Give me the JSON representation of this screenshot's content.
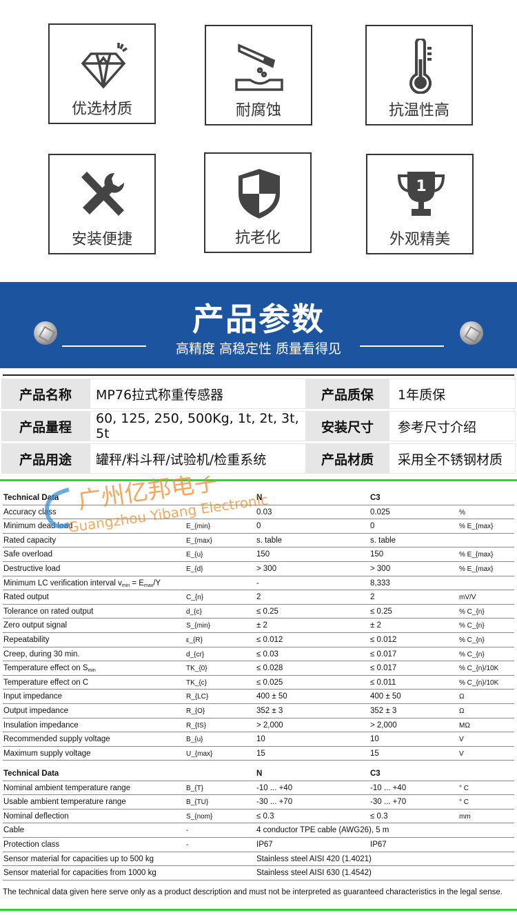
{
  "features": [
    {
      "label": "优选材质",
      "icon": "diamond-icon"
    },
    {
      "label": "耐腐蚀",
      "icon": "corrosion-icon"
    },
    {
      "label": "抗温性高",
      "icon": "thermometer-icon"
    },
    {
      "label": "安装便捷",
      "icon": "tools-icon"
    },
    {
      "label": "抗老化",
      "icon": "shield-icon"
    },
    {
      "label": "外观精美",
      "icon": "trophy-icon"
    }
  ],
  "banner": {
    "title": "产品参数",
    "subtitle": "高精度 高稳定性 质量看得见"
  },
  "params": [
    {
      "k1": "产品名称",
      "v1": "MP76拉式称重传感器",
      "k2": "产品质保",
      "v2": "1年质保"
    },
    {
      "k1": "产品量程",
      "v1": "60, 125, 250, 500Kg, 1t, 2t, 3t, 5t",
      "k2": "安装尺寸",
      "v2": "参考尺寸介绍"
    },
    {
      "k1": "产品用途",
      "v1": "罐秤/料斗秤/试验机/检重系统",
      "k2": "产品材质",
      "v2": "采用全不锈钢材质"
    }
  ],
  "watermark": {
    "cn": "广州亿邦电子",
    "en": "Guangzhou Yibang Electronic"
  },
  "table1": {
    "header": [
      "Technical Data",
      "",
      "N",
      "C3",
      ""
    ],
    "rows": [
      [
        "Accuracy class",
        "",
        "0.03",
        "0.025",
        "%"
      ],
      [
        "Minimum dead load",
        "E_{min}",
        "0",
        "0",
        "% E_{max}"
      ],
      [
        "Rated capacity",
        "E_{max}",
        "s. table",
        "s. table",
        ""
      ],
      [
        "Safe overload",
        "E_{u}",
        "150",
        "150",
        "% E_{max}"
      ],
      [
        "Destructive load",
        "E_{d}",
        "> 300",
        "> 300",
        "% E_{max}"
      ],
      [
        "Minimum LC verification interval v_{min} = E_{max}/Y",
        "",
        "-",
        "8,333",
        ""
      ],
      [
        "Rated output",
        "C_{n}",
        "2",
        "2",
        "mV/V"
      ],
      [
        "Tolerance on rated output",
        "d_{c}",
        "≤ 0.25",
        "≤ 0.25",
        "% C_{n}"
      ],
      [
        "Zero output signal",
        "S_{min}",
        "± 2",
        "± 2",
        "% C_{n}"
      ],
      [
        "Repeatability",
        "ε_{R}",
        "≤ 0.012",
        "≤ 0.012",
        "% C_{n}"
      ],
      [
        "Creep, during 30 min.",
        "d_{cr}",
        "≤ 0.03",
        "≤ 0.017",
        "% C_{n}"
      ],
      [
        "Temperature effect on S_{min}",
        "TK_{0}",
        "≤ 0.028",
        "≤ 0.017",
        "% C_{n}/10K"
      ],
      [
        "Temperature effect on C",
        "TK_{c}",
        "≤ 0.025",
        "≤ 0.011",
        "% C_{n}/10K"
      ],
      [
        "Input impedance",
        "R_{LC}",
        "400 ± 50",
        "400 ± 50",
        "Ω"
      ],
      [
        "Output impedance",
        "R_{O}",
        "352 ± 3",
        "352 ± 3",
        "Ω"
      ],
      [
        "Insulation impedance",
        "R_{IS}",
        "> 2,000",
        "> 2,000",
        "MΩ"
      ],
      [
        "Recommended supply voltage",
        "B_{u}",
        "10",
        "10",
        "V"
      ],
      [
        "Maximum supply voltage",
        "U_{max}",
        "15",
        "15",
        "V"
      ]
    ]
  },
  "table2": {
    "header": [
      "Technical Data",
      "",
      "N",
      "C3",
      ""
    ],
    "rows": [
      [
        "Nominal ambient temperature range",
        "B_{T}",
        "-10 ... +40",
        "-10 ... +40",
        "° C"
      ],
      [
        "Usable ambient temperature range",
        "B_{TU}",
        "-30 ... +70",
        "-30 ... +70",
        "° C"
      ],
      [
        "Nominal deflection",
        "S_{nom}",
        "≤ 0.3",
        "≤ 0.3",
        "mm"
      ],
      [
        "Cable",
        "-",
        "4 conductor TPE cable (AWG26), 5 m",
        "",
        ""
      ],
      [
        "Protection class",
        "-",
        "IP67",
        "IP67",
        ""
      ],
      [
        "Sensor material for capacities up to 500 kg",
        "",
        "Stainless steel AISI 420 (1.4021)",
        "",
        ""
      ],
      [
        "Sensor material for capacities from 1000 kg",
        "",
        "Stainless steel AISI 630 (1.4542)",
        "",
        ""
      ]
    ]
  },
  "footnote": "The technical data given here serve only as a product description and must not be interpreted as guaranteed characteristics in the legal sense.",
  "colors": {
    "banner": "#1c54a0",
    "accent_line": "#2fd62f",
    "watermark": "#f28c28"
  }
}
